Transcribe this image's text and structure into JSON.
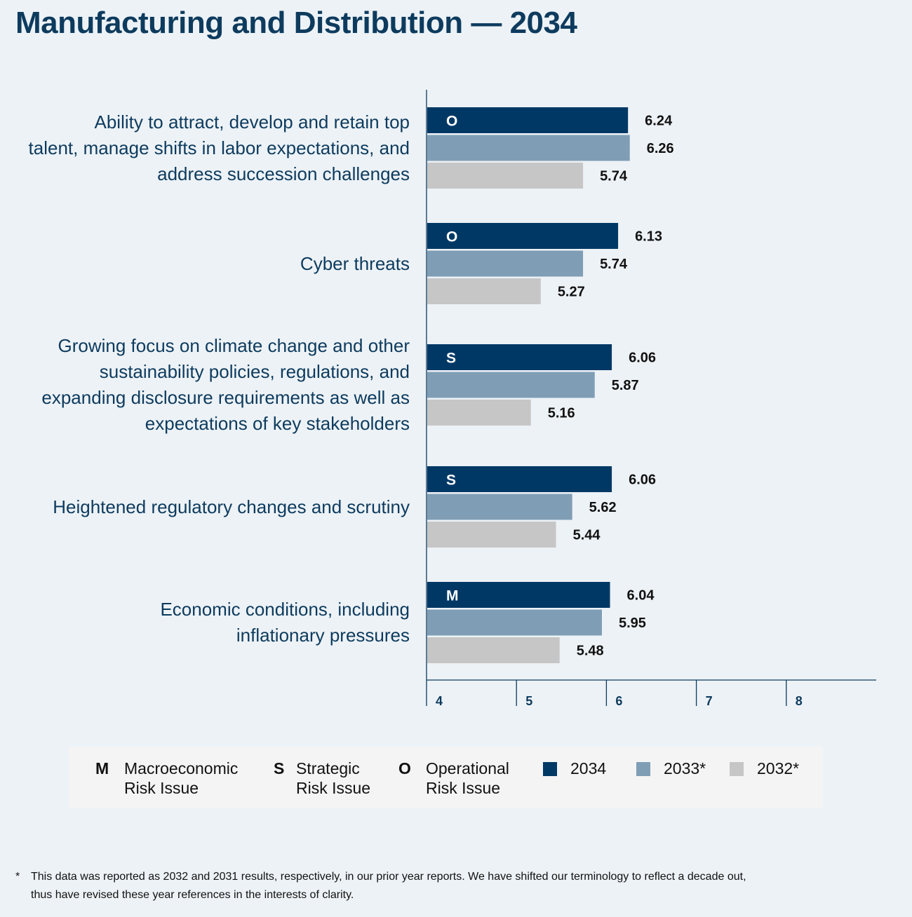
{
  "title": "Manufacturing and Distribution — 2034",
  "chart_data": {
    "type": "bar",
    "orientation": "horizontal",
    "title": "Manufacturing and Distribution — 2034",
    "categories": [
      [
        "Ability to attract, develop and retain top",
        "talent, manage shifts in labor expectations, and",
        "address succession challenges"
      ],
      [
        "Cyber threats"
      ],
      [
        "Growing focus on climate change and other",
        "sustainability policies, regulations, and",
        "expanding disclosure requirements as well as",
        "expectations of key stakeholders"
      ],
      [
        "Heightened regulatory changes and scrutiny"
      ],
      [
        "Economic conditions, including",
        "inflationary pressures"
      ]
    ],
    "risk_types": [
      "O",
      "O",
      "S",
      "S",
      "M"
    ],
    "series": [
      {
        "name": "2034",
        "color": "#003865",
        "values": [
          6.24,
          6.13,
          6.06,
          6.06,
          6.04
        ],
        "labels": [
          "6.24",
          "6.13",
          "6.06",
          "6.06",
          "6.04"
        ]
      },
      {
        "name": "2033*",
        "color": "#7f9eb6",
        "values": [
          6.26,
          5.74,
          5.87,
          5.62,
          5.95
        ],
        "labels": [
          "6.26",
          "5.74",
          "5.87",
          "5.62",
          "5.95"
        ]
      },
      {
        "name": "2032*",
        "color": "#c6c6c6",
        "values": [
          5.74,
          5.27,
          5.16,
          5.44,
          5.48
        ],
        "labels": [
          "5.74",
          "5.27",
          "5.16",
          "5.44",
          "5.48"
        ]
      }
    ],
    "xlim": [
      4,
      9
    ],
    "xticks": [
      "4",
      "5",
      "6",
      "7",
      "8"
    ],
    "axis_color": "#0d3b5e"
  },
  "legend": {
    "risk_types": [
      {
        "letter": "M",
        "line1": "Macroeconomic",
        "line2": "Risk Issue"
      },
      {
        "letter": "S",
        "line1": "Strategic",
        "line2": "Risk Issue"
      },
      {
        "letter": "O",
        "line1": "Operational",
        "line2": "Risk Issue"
      }
    ],
    "years": [
      {
        "label": "2034",
        "color": "#003865"
      },
      {
        "label": "2033*",
        "color": "#7f9eb6"
      },
      {
        "label": "2032*",
        "color": "#c6c6c6"
      }
    ]
  },
  "footnote": {
    "marker": "*",
    "line1": "This data was reported as 2032 and 2031 results, respectively, in our prior year reports. We have shifted our terminology to reflect a decade out,",
    "line2": "thus have revised these year references in the interests of clarity."
  }
}
